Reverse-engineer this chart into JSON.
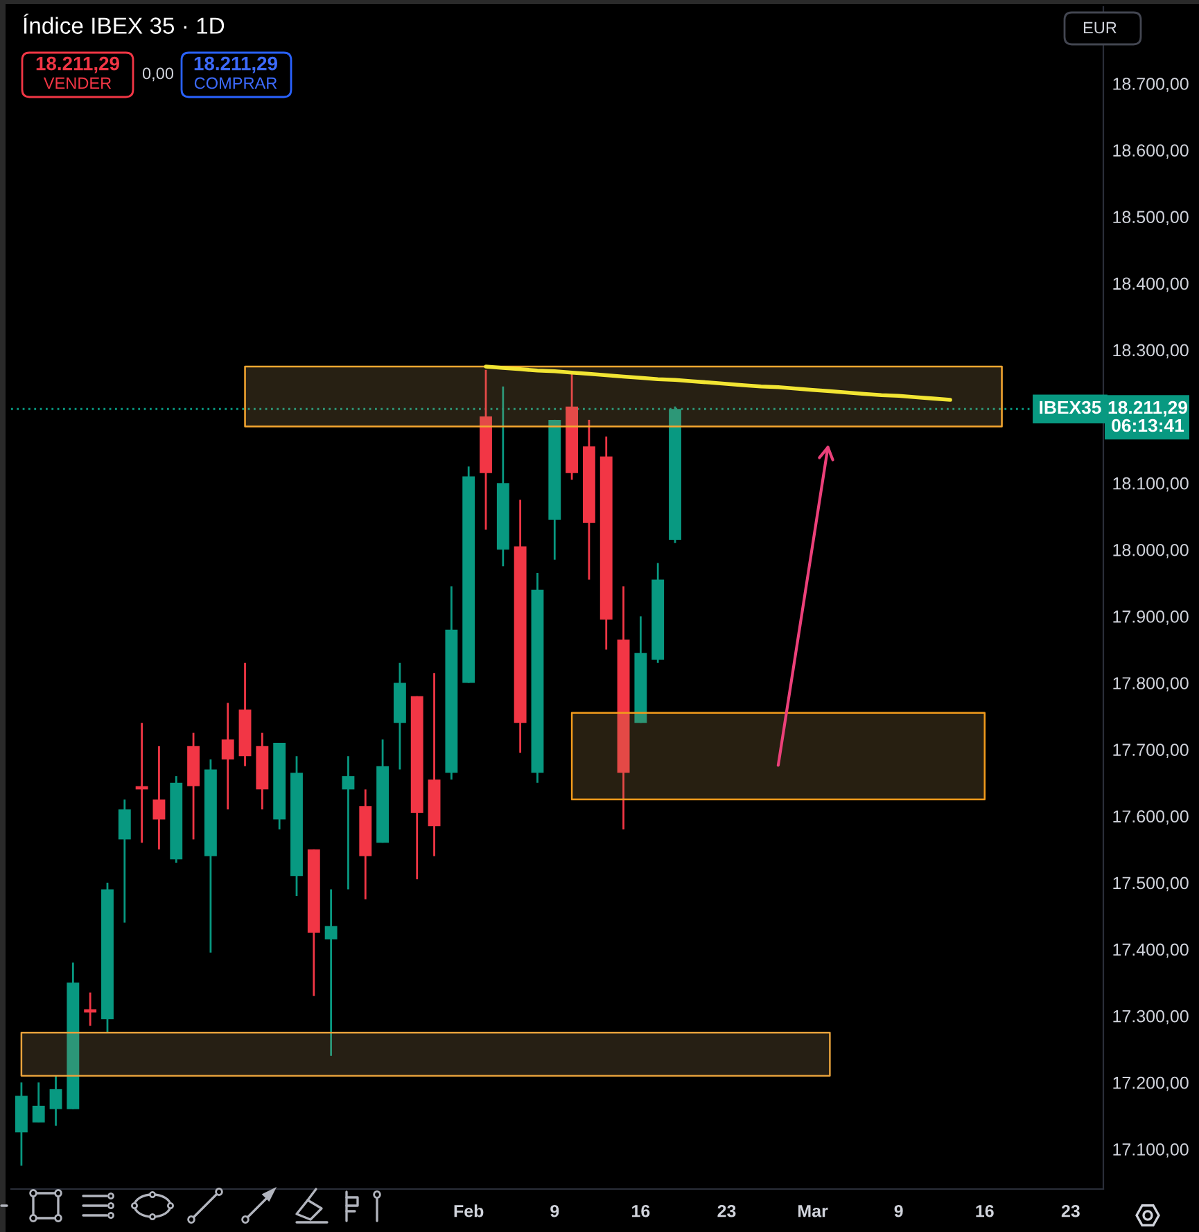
{
  "chart_data": {
    "type": "candlestick",
    "title": "Índice IBEX 35 · 1D",
    "categories": [
      null,
      null,
      null,
      null,
      null,
      null,
      null,
      null,
      null,
      null,
      null,
      null,
      null,
      null,
      null,
      null,
      null,
      null,
      null,
      null,
      null,
      null,
      null,
      null,
      null,
      null,
      "Feb",
      null,
      null,
      null,
      null,
      "9",
      null,
      null,
      null,
      null,
      "16",
      null,
      null,
      null,
      null,
      "23",
      null,
      null,
      null,
      null,
      "Mar",
      null,
      null,
      null,
      null,
      "9",
      null,
      null,
      null,
      null,
      "16",
      null,
      null,
      null,
      null,
      "23",
      null
    ],
    "ohlc": [
      [
        17125,
        17200,
        17075,
        17180
      ],
      [
        17140,
        17200,
        17140,
        17165
      ],
      [
        17160,
        17210,
        17135,
        17190
      ],
      [
        17160,
        17380,
        17160,
        17350
      ],
      [
        17310,
        17335,
        17285,
        17305
      ],
      [
        17295,
        17500,
        17275,
        17490
      ],
      [
        17565,
        17625,
        17440,
        17610
      ],
      [
        17645,
        17740,
        17560,
        17640
      ],
      [
        17625,
        17705,
        17550,
        17595
      ],
      [
        17535,
        17660,
        17530,
        17650
      ],
      [
        17705,
        17725,
        17565,
        17645
      ],
      [
        17540,
        17685,
        17395,
        17670
      ],
      [
        17715,
        17770,
        17610,
        17685
      ],
      [
        17760,
        17830,
        17675,
        17690
      ],
      [
        17705,
        17725,
        17610,
        17640
      ],
      [
        17595,
        17710,
        17580,
        17710
      ],
      [
        17510,
        17690,
        17480,
        17665
      ],
      [
        17550,
        17550,
        17330,
        17425
      ],
      [
        17415,
        17490,
        17240,
        17435
      ],
      [
        17640,
        17690,
        17490,
        17660
      ],
      [
        17615,
        17640,
        17475,
        17540
      ],
      [
        17560,
        17715,
        17560,
        17675
      ],
      [
        17740,
        17830,
        17670,
        17800
      ],
      [
        17780,
        17780,
        17505,
        17605
      ],
      [
        17655,
        17815,
        17540,
        17585
      ],
      [
        17665,
        17945,
        17655,
        17880
      ],
      [
        17800,
        18125,
        17800,
        18110
      ],
      [
        18200,
        18270,
        18030,
        18115
      ],
      [
        18000,
        18245,
        17975,
        18100
      ],
      [
        18005,
        18075,
        17695,
        17740
      ],
      [
        17665,
        17965,
        17650,
        17940
      ],
      [
        18045,
        18195,
        17985,
        18195
      ],
      [
        18215,
        18265,
        18105,
        18115
      ],
      [
        18155,
        18195,
        17955,
        18040
      ],
      [
        18140,
        18170,
        17850,
        17895
      ],
      [
        17865,
        17945,
        17580,
        17665
      ],
      [
        17740,
        17900,
        17740,
        17845
      ],
      [
        17835,
        17980,
        17830,
        17955
      ],
      [
        18015,
        18215,
        18010,
        18211.29
      ],
      null,
      null,
      null,
      null,
      null,
      null,
      null,
      null,
      null,
      null,
      null,
      null,
      null,
      null,
      null,
      null,
      null,
      null,
      null,
      null,
      null,
      null,
      null,
      null
    ],
    "colors": [
      "#089981",
      "#089981",
      "#089981",
      "#089981",
      "#f23645",
      "#089981",
      "#089981",
      "#f23645",
      "#f23645",
      "#089981",
      "#f23645",
      "#089981",
      "#f23645",
      "#f23645",
      "#f23645",
      "#089981",
      "#089981",
      "#f23645",
      "#089981",
      "#089981",
      "#f23645",
      "#089981",
      "#089981",
      "#f23645",
      "#f23645",
      "#089981",
      "#089981",
      "#f23645",
      "#089981",
      "#f23645",
      "#089981",
      "#089981",
      "#f23645",
      "#f23645",
      "#f23645",
      "#f23645",
      "#089981",
      "#089981",
      "#089981",
      null,
      null,
      null,
      null,
      null,
      null,
      null,
      null,
      null,
      null,
      null,
      null,
      null,
      null,
      null,
      null,
      null,
      null,
      null,
      null,
      null,
      null,
      null,
      null
    ],
    "series": [
      {
        "type": "line",
        "color": "#f7a830",
        "values": [
          null,
          null,
          null,
          null,
          null,
          null,
          null,
          null,
          null,
          null,
          null,
          null,
          null,
          null,
          null,
          null,
          null,
          null,
          null,
          null,
          null,
          null,
          null,
          null,
          null,
          null,
          null,
          null,
          null,
          null,
          null,
          null,
          null,
          null,
          null,
          null,
          null,
          null,
          null,
          null,
          null,
          null,
          null,
          null,
          null,
          null,
          null,
          null,
          null,
          null,
          null,
          null,
          null,
          null,
          null,
          null,
          null,
          null,
          null,
          null,
          null,
          null,
          null
        ],
        "upper": [
          null,
          null,
          null,
          null,
          null,
          null,
          null,
          null,
          null,
          null,
          null,
          null,
          null,
          18275,
          18275,
          18275,
          18275,
          18275,
          18275,
          18275,
          18275,
          18275,
          18275,
          18275,
          18275,
          18275,
          18275,
          18275,
          18275,
          18275,
          18275,
          18275,
          18275,
          18275,
          18275,
          18275,
          18275,
          18275,
          18275,
          18275,
          18275,
          18275,
          18275,
          18275,
          18275,
          18275,
          18275,
          18275,
          18275,
          18275,
          18275,
          18275,
          18275,
          18275,
          18275,
          18275,
          18275,
          18275,
          null,
          null,
          null,
          null,
          null
        ],
        "lower": [
          null,
          null,
          null,
          null,
          null,
          null,
          null,
          null,
          null,
          null,
          null,
          null,
          null,
          18185,
          18185,
          18185,
          18185,
          18185,
          18185,
          18185,
          18185,
          18185,
          18185,
          18185,
          18185,
          18185,
          18185,
          18185,
          18185,
          18185,
          18185,
          18185,
          18185,
          18185,
          18185,
          18185,
          18185,
          18185,
          18185,
          18185,
          18185,
          18185,
          18185,
          18185,
          18185,
          18185,
          18185,
          18185,
          18185,
          18185,
          18185,
          18185,
          18185,
          18185,
          18185,
          18185,
          18185,
          18185,
          null,
          null,
          null,
          null,
          null
        ]
      },
      {
        "type": "line",
        "color": "#f29b1c",
        "values": [
          null,
          null,
          null,
          null,
          null,
          null,
          null,
          null,
          null,
          null,
          null,
          null,
          null,
          null,
          null,
          null,
          null,
          null,
          null,
          null,
          null,
          null,
          null,
          null,
          null,
          null,
          null,
          null,
          null,
          null,
          null,
          null,
          null,
          null,
          null,
          null,
          null,
          null,
          null,
          null,
          null,
          null,
          null,
          null,
          null,
          null,
          null,
          null,
          null,
          null,
          null,
          null,
          null,
          null,
          null,
          null,
          null,
          null,
          null,
          null,
          null,
          null,
          null
        ],
        "upper": [
          null,
          null,
          null,
          null,
          null,
          null,
          null,
          null,
          null,
          null,
          null,
          null,
          null,
          null,
          null,
          null,
          null,
          null,
          null,
          null,
          null,
          null,
          null,
          null,
          null,
          null,
          null,
          null,
          null,
          null,
          null,
          null,
          17755,
          17755,
          17755,
          17755,
          17755,
          17755,
          17755,
          17755,
          17755,
          17755,
          17755,
          17755,
          17755,
          17755,
          17755,
          17755,
          17755,
          17755,
          17755,
          17755,
          17755,
          17755,
          17755,
          17755,
          17755,
          null,
          null,
          null,
          null,
          null,
          null
        ],
        "lower": [
          null,
          null,
          null,
          null,
          null,
          null,
          null,
          null,
          null,
          null,
          null,
          null,
          null,
          null,
          null,
          null,
          null,
          null,
          null,
          null,
          null,
          null,
          null,
          null,
          null,
          null,
          null,
          null,
          null,
          null,
          null,
          null,
          17625,
          17625,
          17625,
          17625,
          17625,
          17625,
          17625,
          17625,
          17625,
          17625,
          17625,
          17625,
          17625,
          17625,
          17625,
          17625,
          17625,
          17625,
          17625,
          17625,
          17625,
          17625,
          17625,
          17625,
          17625,
          null,
          null,
          null,
          null,
          null,
          null
        ]
      },
      {
        "type": "line",
        "color": "#e8a23c",
        "values": [
          null,
          null,
          null,
          null,
          null,
          null,
          null,
          null,
          null,
          null,
          null,
          null,
          null,
          null,
          null,
          null,
          null,
          null,
          null,
          null,
          null,
          null,
          null,
          null,
          null,
          null,
          null,
          null,
          null,
          null,
          null,
          null,
          null,
          null,
          null,
          null,
          null,
          null,
          null,
          null,
          null,
          null,
          null,
          null,
          null,
          null,
          null,
          null,
          null,
          null,
          null,
          null,
          null,
          null,
          null,
          null,
          null,
          null,
          null,
          null,
          null,
          null,
          null
        ],
        "upper": [
          17275,
          17275,
          17275,
          17275,
          17275,
          17275,
          17275,
          17275,
          17275,
          17275,
          17275,
          17275,
          17275,
          17275,
          17275,
          17275,
          17275,
          17275,
          17275,
          17275,
          17275,
          17275,
          17275,
          17275,
          17275,
          17275,
          17275,
          17275,
          17275,
          17275,
          17275,
          17275,
          17275,
          17275,
          17275,
          17275,
          17275,
          17275,
          17275,
          17275,
          17275,
          17275,
          17275,
          17275,
          17275,
          17275,
          17275,
          17275,
          null,
          null,
          null,
          null,
          null,
          null,
          null,
          null,
          null,
          null,
          null,
          null,
          null,
          null,
          null
        ],
        "lower": [
          17210,
          17210,
          17210,
          17210,
          17210,
          17210,
          17210,
          17210,
          17210,
          17210,
          17210,
          17210,
          17210,
          17210,
          17210,
          17210,
          17210,
          17210,
          17210,
          17210,
          17210,
          17210,
          17210,
          17210,
          17210,
          17210,
          17210,
          17210,
          17210,
          17210,
          17210,
          17210,
          17210,
          17210,
          17210,
          17210,
          17210,
          17210,
          17210,
          17210,
          17210,
          17210,
          17210,
          17210,
          17210,
          17210,
          17210,
          17210,
          null,
          null,
          null,
          null,
          null,
          null,
          null,
          null,
          null,
          null,
          null,
          null,
          null,
          null,
          null
        ]
      },
      {
        "type": "line",
        "color": "#f2e533",
        "values": [
          null,
          null,
          null,
          null,
          null,
          null,
          null,
          null,
          null,
          null,
          null,
          null,
          null,
          null,
          null,
          null,
          null,
          null,
          null,
          null,
          null,
          null,
          null,
          null,
          null,
          null,
          null,
          18275,
          18273,
          18271,
          18269,
          18268,
          18266,
          18264,
          18262,
          18260,
          18258,
          18256,
          18255,
          18253,
          18251,
          18249,
          18247,
          18245,
          18244,
          18242,
          18240,
          18238,
          18236,
          18234,
          18232,
          18231,
          18229,
          18227,
          18225,
          null,
          null,
          null,
          null,
          null,
          null,
          null,
          null
        ]
      }
    ],
    "ylim": [
      17040,
      18815
    ],
    "yticks": [
      {
        "value": 17100,
        "label": "17.100,00"
      },
      {
        "value": 17200,
        "label": "17.200,00"
      },
      {
        "value": 17300,
        "label": "17.300,00"
      },
      {
        "value": 17400,
        "label": "17.400,00"
      },
      {
        "value": 17500,
        "label": "17.500,00"
      },
      {
        "value": 17600,
        "label": "17.600,00"
      },
      {
        "value": 17700,
        "label": "17.700,00"
      },
      {
        "value": 17800,
        "label": "17.800,00"
      },
      {
        "value": 17900,
        "label": "17.900,00"
      },
      {
        "value": 18000,
        "label": "18.000,00"
      },
      {
        "value": 18100,
        "label": "18.100,00"
      },
      {
        "value": 18300,
        "label": "18.300,00"
      },
      {
        "value": 18400,
        "label": "18.400,00"
      },
      {
        "value": 18500,
        "label": "18.500,00"
      },
      {
        "value": 18600,
        "label": "18.600,00"
      },
      {
        "value": 18700,
        "label": "18.700,00"
      }
    ],
    "ref_lines": [
      {
        "axis": "y",
        "value": 18211.29,
        "label": "18.211,29",
        "color": "#089981",
        "line_style": "dotted"
      }
    ],
    "annotations": [
      "18.211,29",
      "VENDER",
      "0,00",
      "18.211,29",
      "COMPRAR",
      "EUR",
      "IBEX35",
      "06:13:41"
    ]
  }
}
